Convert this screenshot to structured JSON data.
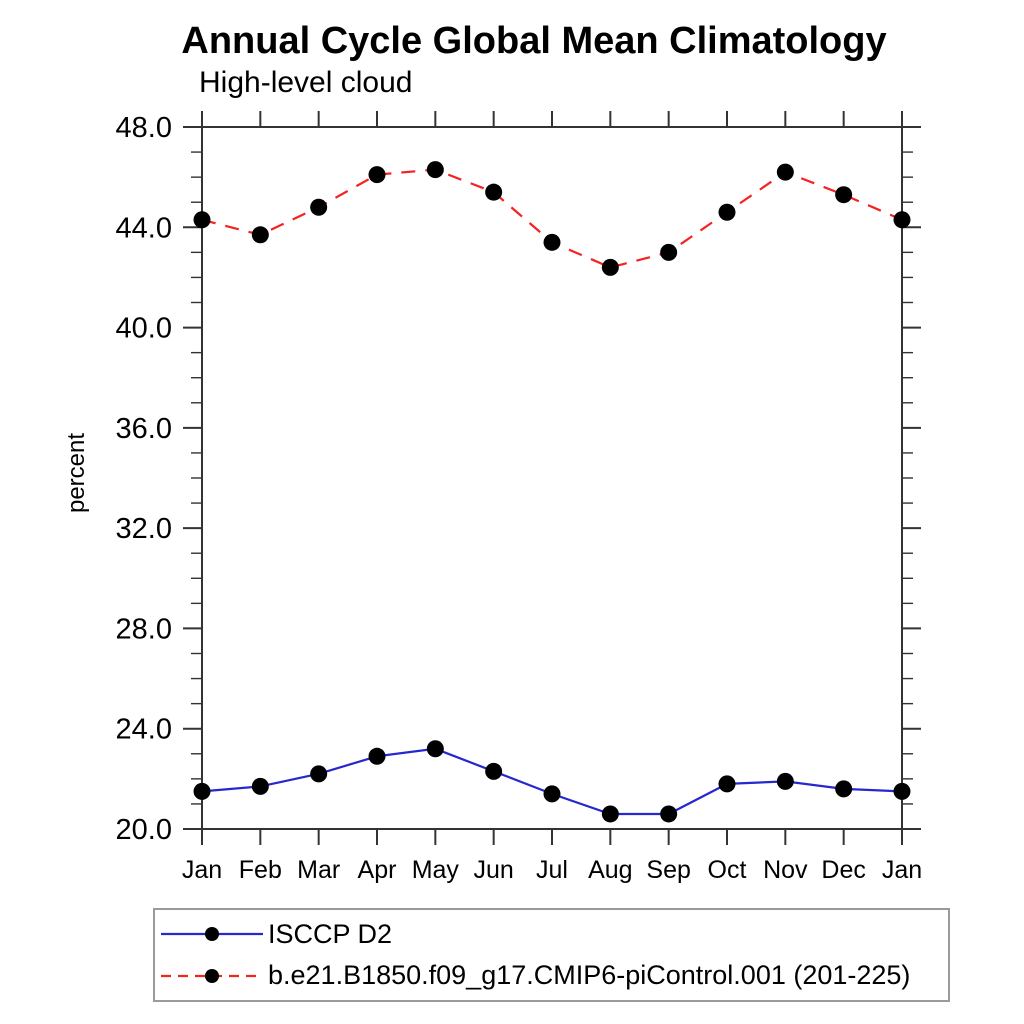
{
  "chart_data": {
    "type": "line",
    "title": "Annual Cycle Global Mean Climatology",
    "subtitle": "High-level cloud",
    "xlabel": "",
    "ylabel": "percent",
    "categories": [
      "Jan",
      "Feb",
      "Mar",
      "Apr",
      "May",
      "Jun",
      "Jul",
      "Aug",
      "Sep",
      "Oct",
      "Nov",
      "Dec",
      "Jan"
    ],
    "series": [
      {
        "name": "ISCCP D2",
        "style": "solid",
        "color": "#2727cf",
        "marker": "circle",
        "marker_color": "#000000",
        "values": [
          21.5,
          21.7,
          22.2,
          22.9,
          23.2,
          22.3,
          21.4,
          20.6,
          20.6,
          21.8,
          21.9,
          21.6,
          21.5
        ]
      },
      {
        "name": "b.e21.B1850.f09_g17.CMIP6-piControl.001 (201-225)",
        "style": "dashed",
        "color": "#f52222",
        "marker": "circle",
        "marker_color": "#000000",
        "values": [
          44.3,
          43.7,
          44.8,
          46.1,
          46.3,
          45.4,
          43.4,
          42.4,
          43.0,
          44.6,
          46.2,
          45.3,
          44.3
        ]
      }
    ],
    "ylim": [
      20,
      48
    ],
    "yticks_major": [
      20,
      24,
      28,
      32,
      36,
      40,
      44,
      48
    ],
    "ytick_labels": [
      "20.0",
      "24.0",
      "28.0",
      "32.0",
      "36.0",
      "40.0",
      "44.0",
      "48.0"
    ],
    "minor_tick_interval": 1,
    "grid": false,
    "legend_position": "bottom-left-box",
    "frame_color": "#333333",
    "legend_border_color": "#9a9a9a"
  }
}
